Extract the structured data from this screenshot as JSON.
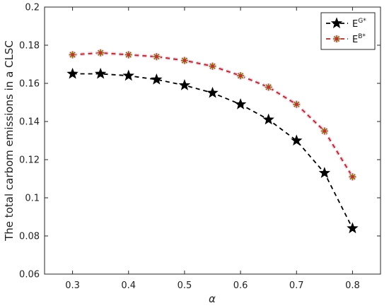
{
  "chart_data": {
    "type": "line",
    "title": "",
    "xlabel": "α",
    "ylabel": "The total carbom emissions in a CLSC",
    "x": [
      0.3,
      0.35,
      0.4,
      0.45,
      0.5,
      0.55,
      0.6,
      0.65,
      0.7,
      0.75,
      0.8
    ],
    "xlim": [
      0.25,
      0.85
    ],
    "ylim": [
      0.06,
      0.2
    ],
    "xticks": [
      "0.3",
      "0.4",
      "0.5",
      "0.6",
      "0.7",
      "0.8"
    ],
    "yticks": [
      "0.06",
      "0.08",
      "0.1",
      "0.12",
      "0.14",
      "0.16",
      "0.18",
      "0.2"
    ],
    "grid": false,
    "legend_position": "top-right",
    "series": [
      {
        "name": "E",
        "superscript": "G*",
        "color": "#000000",
        "marker": "pentagram",
        "line_style": "dashed",
        "values": [
          0.165,
          0.165,
          0.164,
          0.162,
          0.159,
          0.155,
          0.149,
          0.141,
          0.13,
          0.113,
          0.084
        ]
      },
      {
        "name": "E",
        "superscript": "B*",
        "color": "#A52A2A",
        "marker_face": "#C03030",
        "marker_edge": "#8B6914",
        "marker": "asterisk",
        "line_style": "dashed",
        "values": [
          0.175,
          0.176,
          0.175,
          0.174,
          0.172,
          0.169,
          0.164,
          0.158,
          0.149,
          0.135,
          0.111
        ]
      }
    ]
  }
}
